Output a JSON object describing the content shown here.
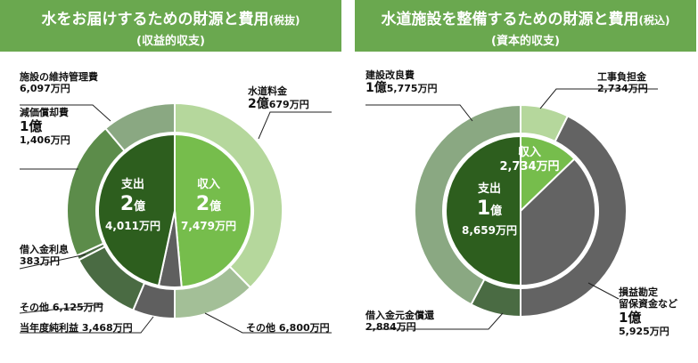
{
  "left": {
    "title": "水をお届けするための財源と費用",
    "title_suffix": "(税抜)",
    "subtitle": "(収益的収支)",
    "center_expense": {
      "label": "支出",
      "amount_big": "2",
      "amount_unit": "億",
      "amount_sub": "4,011万円"
    },
    "center_income": {
      "label": "収入",
      "amount_big": "2",
      "amount_unit": "億",
      "amount_sub": "7,479万円"
    },
    "labels": {
      "facility": {
        "line1": "施設の維持管理費",
        "line2": "6,097万円"
      },
      "depreciation": {
        "line1": "減価償却費",
        "line2": "1億",
        "line3": "1,406万円"
      },
      "interest": {
        "line1": "借入金利息",
        "line2": "383万円"
      },
      "other_expense": {
        "line1": "その他 6,125万円"
      },
      "net_profit": {
        "line1": "当年度純利益 3,468万円"
      },
      "water_fee": {
        "line1": "水道料金",
        "line2_big": "2億",
        "line2_small": "679万円"
      },
      "other_income": {
        "line1": "その他 6,800万円"
      }
    }
  },
  "right": {
    "title": "水道施設を整備するための財源と費用",
    "title_suffix": "(税込)",
    "subtitle": "(資本的収支)",
    "center_expense": {
      "label": "支出",
      "amount_big": "1",
      "amount_unit": "億",
      "amount_sub": "8,659万円"
    },
    "center_income": {
      "label": "収入",
      "amount": "2,734万円"
    },
    "labels": {
      "construction": {
        "line1": "建設改良費",
        "line2_big": "1億",
        "line2_small": "5,775万円"
      },
      "subsidy": {
        "line1": "工事負担金",
        "line2": "2,734万円"
      },
      "loan_repay": {
        "line1": "借入金元金償還",
        "line2": "2,884万円"
      },
      "reserve": {
        "line1": "損益勘定",
        "line2": "留保資金など",
        "line3": "1億",
        "line4": "5,925万円"
      }
    }
  },
  "colors": {
    "header": "#6aa84f",
    "income_inner": "#76bd4c",
    "expense_inner": "#2d5e1e",
    "income_outer": "#b5d79c",
    "income_outer2": "#a3bf97",
    "expense_outer_a": "#8aa882",
    "expense_outer_b": "#5c8c4a",
    "expense_outer_c": "#4a6b43",
    "expense_outer_d": "#5f5f5f",
    "grey_big": "#636363"
  },
  "chart_data": [
    {
      "type": "pie",
      "title": "水をお届けするための財源と費用(税抜)(収益的収支)",
      "unit": "万円",
      "inner": [
        {
          "name": "支出",
          "value": 24011
        },
        {
          "name": "収入",
          "value": 27479
        }
      ],
      "outer": [
        {
          "name": "水道料金",
          "value": 20679,
          "group": "収入"
        },
        {
          "name": "その他",
          "value": 6800,
          "group": "収入"
        },
        {
          "name": "当年度純利益",
          "value": 3468,
          "group": "支出"
        },
        {
          "name": "その他",
          "value": 6125,
          "group": "支出"
        },
        {
          "name": "借入金利息",
          "value": 383,
          "group": "支出"
        },
        {
          "name": "減価償却費",
          "value": 11406,
          "group": "支出"
        },
        {
          "name": "施設の維持管理費",
          "value": 6097,
          "group": "支出"
        }
      ]
    },
    {
      "type": "pie",
      "title": "水道施設を整備するための財源と費用(税込)(資本的収支)",
      "unit": "万円",
      "inner": [
        {
          "name": "支出",
          "value": 18659
        },
        {
          "name": "収入",
          "value": 2734
        }
      ],
      "outer": [
        {
          "name": "工事負担金",
          "value": 2734,
          "group": "収入"
        },
        {
          "name": "損益勘定留保資金など",
          "value": 15925,
          "group": "収入"
        },
        {
          "name": "借入金元金償還",
          "value": 2884,
          "group": "支出"
        },
        {
          "name": "建設改良費",
          "value": 15775,
          "group": "支出"
        }
      ]
    }
  ]
}
